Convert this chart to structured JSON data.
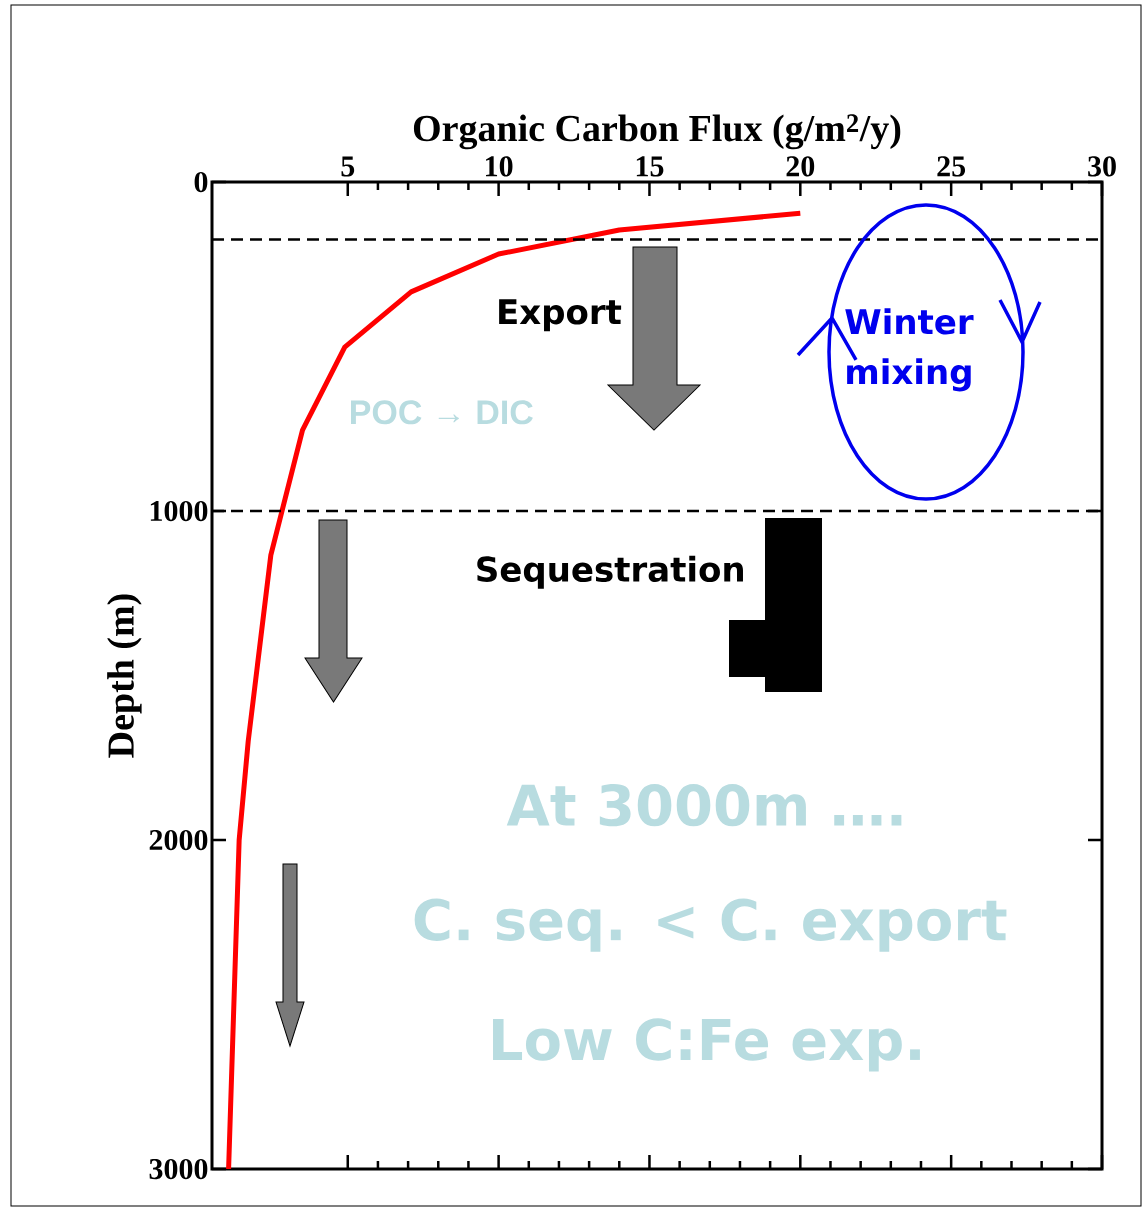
{
  "chart_data": {
    "type": "line",
    "xlabel": "Organic Carbon Flux (g/m$^{2}$/y)",
    "ylabel": "Depth (m)",
    "series": [
      {
        "color": "#ff0000",
        "x": [
          20,
          14,
          10,
          7.1,
          4.9,
          3.5,
          2.45,
          1.7,
          1.4,
          1.05
        ],
        "values": [
          95,
          146,
          219,
          334,
          502,
          754,
          1134,
          1700,
          2000,
          3000
        ]
      }
    ],
    "xlim": [
      0.5,
      30
    ],
    "xticks": [
      5,
      10,
      15,
      20,
      25,
      30
    ],
    "ylim": [
      3000,
      0
    ],
    "yticks": [
      0,
      1000,
      2000,
      3000
    ],
    "ref_lines": [
      {
        "axis": "y",
        "value": 175,
        "line_style": "dashed",
        "color": "#000000"
      },
      {
        "axis": "y",
        "value": 1000,
        "line_style": "dashed",
        "color": "#000000"
      }
    ],
    "annotations": [
      "Export",
      "POC → DIC",
      "Winter mixing",
      "Sequestration",
      "At 3000m ….",
      "C. seq. < C. export",
      "Low C:Fe exp."
    ],
    "line_style": "solid",
    "marker": "none",
    "grid": false
  }
}
